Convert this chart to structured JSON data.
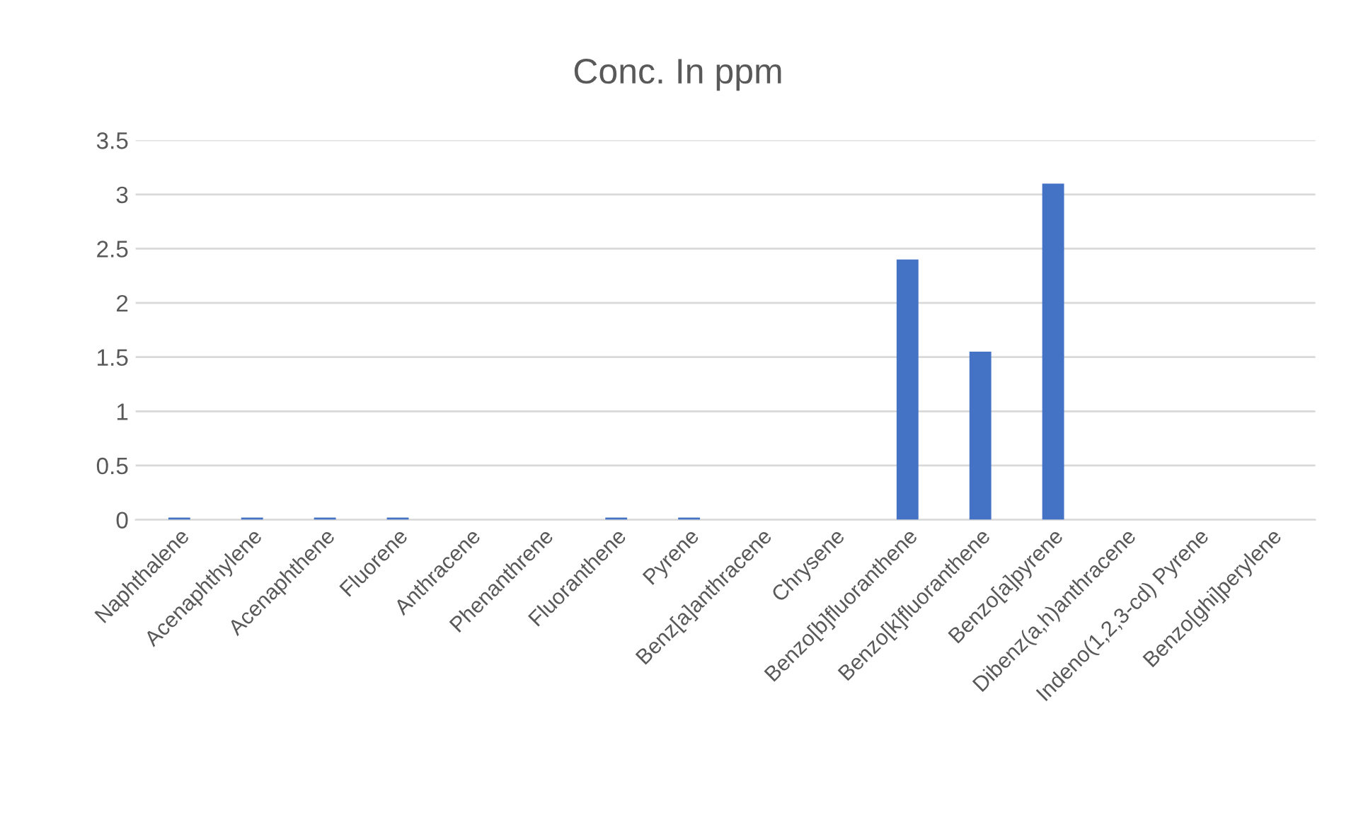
{
  "chart_data": {
    "type": "bar",
    "title": "Conc. In ppm",
    "categories": [
      "Naphthalene",
      "Acenaphthylene",
      "Acenaphthene",
      "Fluorene",
      "Anthracene",
      "Phenanthrene",
      "Fluoranthene",
      "Pyrene",
      "Benz[a]anthracene",
      "Chrysene",
      "Benzo[b]fluoranthene",
      "Benzo[k]fluoranthene",
      "Benzo[a]pyrene",
      "Dibenz(a,h)anthracene",
      "Indeno(1,2,3-cd) Pyrene",
      "Benzo[ghi]perylene"
    ],
    "values": [
      0.02,
      0.02,
      0.02,
      0.02,
      0,
      0,
      0.02,
      0.02,
      0,
      0,
      2.4,
      1.55,
      3.1,
      0,
      0,
      0
    ],
    "color": "#4472c4",
    "ylim": [
      0,
      3.5
    ],
    "yticks": [
      {
        "value": 0,
        "label": "0"
      },
      {
        "value": 0.5,
        "label": "0.5"
      },
      {
        "value": 1,
        "label": "1"
      },
      {
        "value": 1.5,
        "label": "1.5"
      },
      {
        "value": 2,
        "label": "2"
      },
      {
        "value": 2.5,
        "label": "2.5"
      },
      {
        "value": 3,
        "label": "3"
      },
      {
        "value": 3.5,
        "label": "3.5"
      }
    ],
    "grid": "y",
    "legend": false
  }
}
